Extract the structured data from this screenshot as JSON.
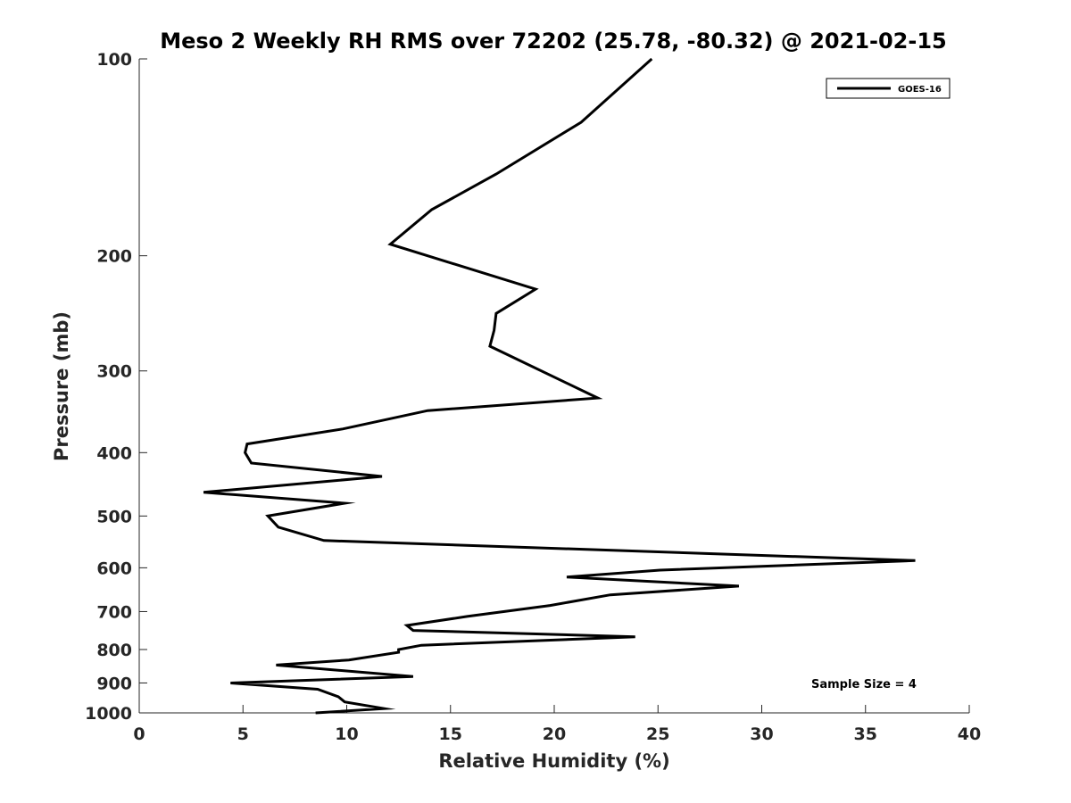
{
  "chart_data": {
    "type": "line",
    "title": "Meso 2 Weekly RH RMS over 72202 (25.78, -80.32) @ 2021-02-15",
    "xlabel": "Relative Humidity (%)",
    "ylabel": "Pressure (mb)",
    "xlim": [
      0,
      40
    ],
    "ylim": [
      100,
      1000
    ],
    "y_scale": "log",
    "y_reversed": true,
    "x_ticks": [
      0,
      5,
      10,
      15,
      20,
      25,
      30,
      35,
      40
    ],
    "x_tick_labels": [
      "0",
      "5",
      "10",
      "15",
      "20",
      "25",
      "30",
      "35",
      "40"
    ],
    "y_ticks": [
      100,
      200,
      300,
      400,
      500,
      600,
      700,
      800,
      900,
      1000
    ],
    "y_tick_labels": [
      "100",
      "200",
      "300",
      "400",
      "500",
      "600",
      "700",
      "800",
      "900",
      "1000"
    ],
    "grid": false,
    "legend": {
      "position": "top-right",
      "entries": [
        "GOES-16"
      ]
    },
    "annotation": "Sample Size = 4",
    "series": [
      {
        "name": "GOES-16",
        "color": "#000000",
        "x": [
          24.7,
          21.3,
          17.2,
          14.1,
          12.1,
          19.1,
          17.2,
          17.1,
          16.9,
          22.1,
          13.9,
          9.8,
          5.2,
          5.1,
          5.4,
          11.7,
          3.1,
          9.9,
          6.2,
          6.7,
          8.9,
          37.4,
          25.1,
          20.6,
          28.9,
          22.7,
          19.8,
          15.8,
          12.9,
          13.2,
          23.9,
          13.6,
          12.5,
          12.5,
          10.1,
          6.6,
          13.2,
          4.4,
          8.6,
          9.6,
          9.9,
          11.8,
          8.5
        ],
        "y": [
          100,
          125,
          150,
          170,
          192,
          225,
          245,
          260,
          275,
          330,
          345,
          368,
          388,
          400,
          415,
          435,
          460,
          478,
          500,
          520,
          545,
          585,
          605,
          620,
          640,
          660,
          685,
          712,
          735,
          748,
          765,
          788,
          800,
          808,
          830,
          845,
          880,
          900,
          920,
          945,
          962,
          985,
          1000
        ]
      }
    ]
  }
}
